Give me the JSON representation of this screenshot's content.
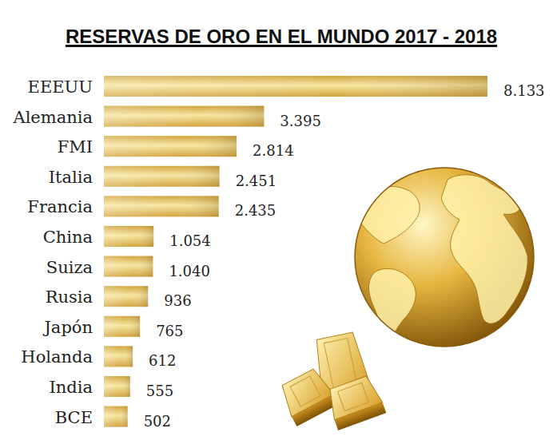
{
  "chart_data": {
    "type": "bar",
    "title": "RESERVAS DE ORO EN EL MUNDO 2017 - 2018",
    "orientation": "horizontal",
    "categories": [
      "EEEUU",
      "Alemania",
      "FMI",
      "Italia",
      "Francia",
      "China",
      "Suiza",
      "Rusia",
      "Japón",
      "Holanda",
      "India",
      "BCE"
    ],
    "values": [
      8133,
      3395,
      2814,
      2451,
      2435,
      1054,
      1040,
      936,
      765,
      612,
      555,
      502
    ],
    "value_labels": [
      "8.133",
      "3.395",
      "2.814",
      "2.451",
      "2.435",
      "1.054",
      "1.040",
      "936",
      "765",
      "612",
      "555",
      "502"
    ],
    "color": "#d2a43c",
    "xlim": [
      0,
      8133
    ],
    "grid": false,
    "data_labels": true,
    "tick_labels": "y"
  }
}
